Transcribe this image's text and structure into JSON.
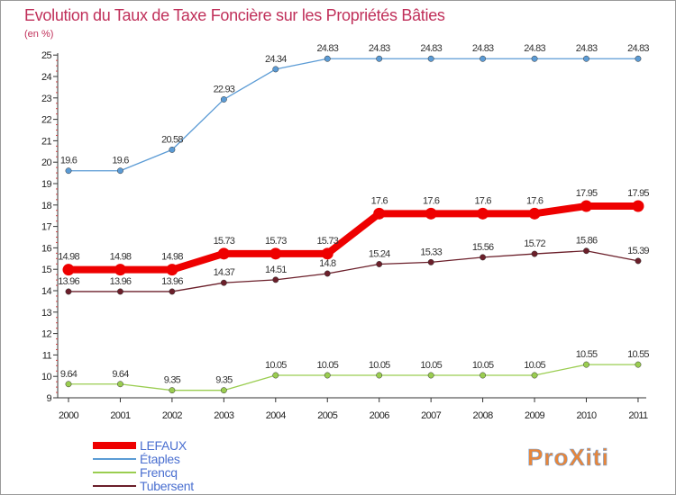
{
  "chart_data": {
    "type": "line",
    "title": "Evolution du Taux de Taxe Foncière sur les Propriétés Bâties",
    "subtitle": "(en %)",
    "xlabel": "",
    "ylabel": "(en %)",
    "categories": [
      "2000",
      "2001",
      "2002",
      "2003",
      "2004",
      "2005",
      "2006",
      "2007",
      "2008",
      "2009",
      "2010",
      "2011"
    ],
    "ylim": [
      9,
      25
    ],
    "yticks": [
      "9",
      "10",
      "11",
      "12",
      "13",
      "14",
      "15",
      "16",
      "17",
      "18",
      "19",
      "20",
      "21",
      "22",
      "23",
      "24",
      "25"
    ],
    "grid": false,
    "legend_position": "bottom-left",
    "series": [
      {
        "name": "LEFAUX",
        "color": "#ee0000",
        "values": [
          14.98,
          14.98,
          14.98,
          15.73,
          15.73,
          15.73,
          17.6,
          17.6,
          17.6,
          17.6,
          17.95,
          17.95
        ],
        "labels": [
          "14.98",
          "14.98",
          "14.98",
          "15.73",
          "15.73",
          "15.73",
          "17.6",
          "17.6",
          "17.6",
          "17.6",
          "17.95",
          "17.95"
        ]
      },
      {
        "name": "Étaples",
        "color": "#5b9bd5",
        "values": [
          19.6,
          19.6,
          20.58,
          22.93,
          24.34,
          24.83,
          24.83,
          24.83,
          24.83,
          24.83,
          24.83,
          24.83
        ],
        "labels": [
          "19.6",
          "19.6",
          "20.58",
          "22.93",
          "24.34",
          "24.83",
          "24.83",
          "24.83",
          "24.83",
          "24.83",
          "24.83",
          "24.83"
        ]
      },
      {
        "name": "Frencq",
        "color": "#9acd50",
        "values": [
          9.64,
          9.64,
          9.35,
          9.35,
          10.05,
          10.05,
          10.05,
          10.05,
          10.05,
          10.05,
          10.55,
          10.55
        ],
        "labels": [
          "9.64",
          "9.64",
          "9.35",
          "9.35",
          "10.05",
          "10.05",
          "10.05",
          "10.05",
          "10.05",
          "10.05",
          "10.55",
          "10.55"
        ]
      },
      {
        "name": "Tubersent",
        "color": "#6b1f2a",
        "values": [
          13.96,
          13.96,
          13.96,
          14.37,
          14.51,
          14.8,
          15.24,
          15.33,
          15.56,
          15.72,
          15.86,
          15.39
        ],
        "labels": [
          "13.96",
          "13.96",
          "13.96",
          "14.37",
          "14.51",
          "14.8",
          "15.24",
          "15.33",
          "15.56",
          "15.72",
          "15.86",
          "15.39"
        ]
      }
    ]
  },
  "watermark": {
    "text": "ProXiti"
  }
}
